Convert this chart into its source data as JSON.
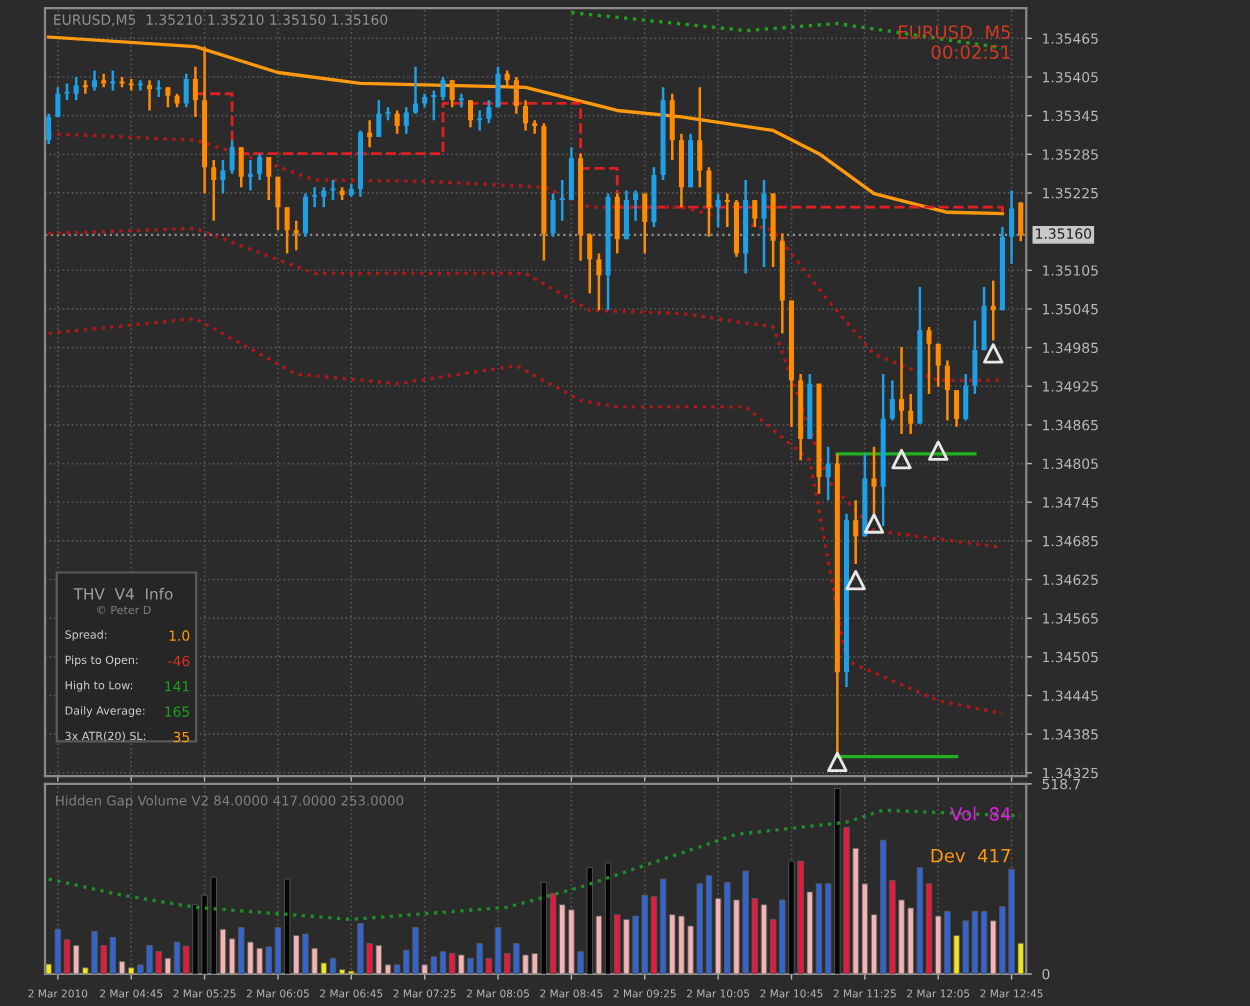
{
  "chart_data": [
    {
      "type": "candlestick",
      "title": "EURUSD,M5  1.35210 1.35210 1.35150 1.35160",
      "x": [
        "2010-03-02T04:00",
        "2010-03-02T04:05",
        "2010-03-02T04:10",
        "2010-03-02T04:15",
        "2010-03-02T04:20",
        "2010-03-02T04:25",
        "2010-03-02T04:30",
        "2010-03-02T04:35",
        "2010-03-02T04:40",
        "2010-03-02T04:45",
        "2010-03-02T04:50",
        "2010-03-02T04:55",
        "2010-03-02T05:00",
        "2010-03-02T05:05",
        "2010-03-02T05:10",
        "2010-03-02T05:15",
        "2010-03-02T05:20",
        "2010-03-02T05:25",
        "2010-03-02T05:30",
        "2010-03-02T05:35",
        "2010-03-02T05:40",
        "2010-03-02T05:45",
        "2010-03-02T05:50",
        "2010-03-02T05:55",
        "2010-03-02T06:00",
        "2010-03-02T06:05",
        "2010-03-02T06:10",
        "2010-03-02T06:15",
        "2010-03-02T06:20",
        "2010-03-02T06:25",
        "2010-03-02T06:30",
        "2010-03-02T06:35",
        "2010-03-02T06:40",
        "2010-03-02T06:45",
        "2010-03-02T06:50",
        "2010-03-02T06:55",
        "2010-03-02T07:00",
        "2010-03-02T07:05",
        "2010-03-02T07:10",
        "2010-03-02T07:15",
        "2010-03-02T07:20",
        "2010-03-02T07:25",
        "2010-03-02T07:30",
        "2010-03-02T07:35",
        "2010-03-02T07:40",
        "2010-03-02T07:45",
        "2010-03-02T07:50",
        "2010-03-02T07:55",
        "2010-03-02T08:00",
        "2010-03-02T08:05",
        "2010-03-02T08:10",
        "2010-03-02T08:15",
        "2010-03-02T08:20",
        "2010-03-02T08:25",
        "2010-03-02T08:30",
        "2010-03-02T08:35",
        "2010-03-02T08:40",
        "2010-03-02T08:45",
        "2010-03-02T08:50",
        "2010-03-02T08:55",
        "2010-03-02T09:00",
        "2010-03-02T09:05",
        "2010-03-02T09:10",
        "2010-03-02T09:15",
        "2010-03-02T09:20",
        "2010-03-02T09:25",
        "2010-03-02T09:30",
        "2010-03-02T09:35",
        "2010-03-02T09:40",
        "2010-03-02T09:45",
        "2010-03-02T09:50",
        "2010-03-02T09:55",
        "2010-03-02T10:00",
        "2010-03-02T10:05",
        "2010-03-02T10:10",
        "2010-03-02T10:15",
        "2010-03-02T10:20",
        "2010-03-02T10:25",
        "2010-03-02T10:30",
        "2010-03-02T10:35",
        "2010-03-02T10:40",
        "2010-03-02T10:45",
        "2010-03-02T10:50",
        "2010-03-02T10:55",
        "2010-03-02T11:00",
        "2010-03-02T11:05",
        "2010-03-02T11:10",
        "2010-03-02T11:15",
        "2010-03-02T11:20",
        "2010-03-02T11:25",
        "2010-03-02T11:30",
        "2010-03-02T11:35",
        "2010-03-02T11:40",
        "2010-03-02T11:45",
        "2010-03-02T11:50",
        "2010-03-02T11:55",
        "2010-03-02T12:00",
        "2010-03-02T12:05",
        "2010-03-02T12:10",
        "2010-03-02T12:15",
        "2010-03-02T12:20",
        "2010-03-02T12:25",
        "2010-03-02T12:30",
        "2010-03-02T12:35",
        "2010-03-02T12:40",
        "2010-03-02T12:45",
        "2010-03-02T12:50"
      ],
      "ohlc": [
        [
          1.35307,
          1.35348,
          1.35301,
          1.35343
        ],
        [
          1.35343,
          1.35389,
          1.35343,
          1.35379
        ],
        [
          1.35379,
          1.35395,
          1.35369,
          1.35379
        ],
        [
          1.35379,
          1.35405,
          1.35369,
          1.35392
        ],
        [
          1.35392,
          1.354,
          1.35379,
          1.35389
        ],
        [
          1.35389,
          1.35415,
          1.35384,
          1.354
        ],
        [
          1.354,
          1.3541,
          1.35389,
          1.35395
        ],
        [
          1.35395,
          1.35415,
          1.35384,
          1.35398
        ],
        [
          1.35398,
          1.35405,
          1.35389,
          1.35395
        ],
        [
          1.35395,
          1.35402,
          1.35384,
          1.35392
        ],
        [
          1.35392,
          1.354,
          1.35384,
          1.35392
        ],
        [
          1.35392,
          1.354,
          1.35353,
          1.35386
        ],
        [
          1.35386,
          1.354,
          1.35374,
          1.35389
        ],
        [
          1.35389,
          1.35389,
          1.35358,
          1.35376
        ],
        [
          1.35376,
          1.35379,
          1.35358,
          1.35364
        ],
        [
          1.35364,
          1.3541,
          1.35358,
          1.35402
        ],
        [
          1.35402,
          1.35421,
          1.35343,
          1.35369
        ],
        [
          1.35369,
          1.35452,
          1.35224,
          1.35265
        ],
        [
          1.35265,
          1.35276,
          1.35182,
          1.35245
        ],
        [
          1.35245,
          1.35276,
          1.35224,
          1.3526
        ],
        [
          1.3526,
          1.35307,
          1.35255,
          1.35296
        ],
        [
          1.35296,
          1.35296,
          1.35234,
          1.3525
        ],
        [
          1.3525,
          1.35276,
          1.35229,
          1.35255
        ],
        [
          1.35255,
          1.35286,
          1.35245,
          1.35281
        ],
        [
          1.35281,
          1.35281,
          1.35214,
          1.3525
        ],
        [
          1.3525,
          1.3525,
          1.35167,
          1.35203
        ],
        [
          1.35203,
          1.35203,
          1.35131,
          1.35167
        ],
        [
          1.35167,
          1.35182,
          1.35136,
          1.35162
        ],
        [
          1.35162,
          1.35224,
          1.35157,
          1.35219
        ],
        [
          1.35219,
          1.35234,
          1.35203,
          1.35219
        ],
        [
          1.35219,
          1.35234,
          1.35203,
          1.35229
        ],
        [
          1.35229,
          1.35245,
          1.35214,
          1.35229
        ],
        [
          1.35229,
          1.35234,
          1.35214,
          1.35222
        ],
        [
          1.35222,
          1.35239,
          1.35219,
          1.35231
        ],
        [
          1.35231,
          1.35322,
          1.35219,
          1.35319
        ],
        [
          1.35319,
          1.35338,
          1.35296,
          1.35312
        ],
        [
          1.35312,
          1.35369,
          1.35312,
          1.35348
        ],
        [
          1.35348,
          1.35358,
          1.35338,
          1.35348
        ],
        [
          1.35348,
          1.35353,
          1.35317,
          1.35329
        ],
        [
          1.35329,
          1.35358,
          1.35317,
          1.3535
        ],
        [
          1.3535,
          1.35421,
          1.35348,
          1.35364
        ],
        [
          1.35364,
          1.35379,
          1.35358,
          1.35374
        ],
        [
          1.35374,
          1.35384,
          1.35338,
          1.35374
        ],
        [
          1.35374,
          1.35405,
          1.35369,
          1.354
        ],
        [
          1.354,
          1.354,
          1.35358,
          1.35369
        ],
        [
          1.35369,
          1.35379,
          1.35358,
          1.35369
        ],
        [
          1.35369,
          1.35369,
          1.35327,
          1.35338
        ],
        [
          1.35338,
          1.35353,
          1.35322,
          1.3534
        ],
        [
          1.3534,
          1.35369,
          1.35333,
          1.35358
        ],
        [
          1.35358,
          1.35421,
          1.35358,
          1.3541
        ],
        [
          1.3541,
          1.35415,
          1.35389,
          1.354
        ],
        [
          1.354,
          1.35405,
          1.35348,
          1.3536
        ],
        [
          1.3536,
          1.35369,
          1.35322,
          1.35333
        ],
        [
          1.35333,
          1.35338,
          1.35317,
          1.35329
        ],
        [
          1.35329,
          1.35333,
          1.3512,
          1.35162
        ],
        [
          1.35162,
          1.35224,
          1.35157,
          1.35214
        ],
        [
          1.35214,
          1.35245,
          1.35182,
          1.35214
        ],
        [
          1.35214,
          1.35296,
          1.35214,
          1.35279
        ],
        [
          1.35279,
          1.35286,
          1.3512,
          1.3516
        ],
        [
          1.3516,
          1.35162,
          1.35069,
          1.35122
        ],
        [
          1.35122,
          1.35131,
          1.35043,
          1.35097
        ],
        [
          1.35097,
          1.35224,
          1.35043,
          1.35219
        ],
        [
          1.35219,
          1.35224,
          1.35131,
          1.35153
        ],
        [
          1.35153,
          1.35229,
          1.35153,
          1.35214
        ],
        [
          1.35214,
          1.35229,
          1.35182,
          1.35224
        ],
        [
          1.35224,
          1.35224,
          1.35131,
          1.3518
        ],
        [
          1.3518,
          1.35265,
          1.35172,
          1.35253
        ],
        [
          1.35253,
          1.35389,
          1.35245,
          1.35369
        ],
        [
          1.35369,
          1.35379,
          1.35276,
          1.35307
        ],
        [
          1.35307,
          1.35317,
          1.35203,
          1.35234
        ],
        [
          1.35234,
          1.35317,
          1.35234,
          1.35307
        ],
        [
          1.35307,
          1.35389,
          1.35234,
          1.3526
        ],
        [
          1.3526,
          1.35265,
          1.35157,
          1.35203
        ],
        [
          1.35203,
          1.35224,
          1.35172,
          1.35214
        ],
        [
          1.35214,
          1.35224,
          1.35172,
          1.35211
        ],
        [
          1.35211,
          1.35214,
          1.35126,
          1.35131
        ],
        [
          1.35131,
          1.35245,
          1.351,
          1.35214
        ],
        [
          1.35214,
          1.35214,
          1.35172,
          1.35185
        ],
        [
          1.35185,
          1.35245,
          1.3511,
          1.35224
        ],
        [
          1.35224,
          1.35224,
          1.3511,
          1.35151
        ],
        [
          1.35151,
          1.35162,
          1.35007,
          1.35058
        ],
        [
          1.35058,
          1.35058,
          1.34862,
          1.34934
        ],
        [
          1.34934,
          1.34944,
          1.3481,
          1.34843
        ],
        [
          1.34843,
          1.34944,
          1.34843,
          1.34929
        ],
        [
          1.34929,
          1.34929,
          1.34758,
          1.34784
        ],
        [
          1.34784,
          1.34831,
          1.34748,
          1.34805
        ],
        [
          1.34805,
          1.3482,
          1.34349,
          1.34481
        ],
        [
          1.34481,
          1.34727,
          1.34458,
          1.34717
        ],
        [
          1.34717,
          1.34748,
          1.34649,
          1.34692
        ],
        [
          1.34692,
          1.3482,
          1.34692,
          1.34782
        ],
        [
          1.34782,
          1.34831,
          1.34727,
          1.34769
        ],
        [
          1.34769,
          1.34944,
          1.34708,
          1.34875
        ],
        [
          1.34875,
          1.34934,
          1.34872,
          1.34905
        ],
        [
          1.34905,
          1.34986,
          1.34851,
          1.34887
        ],
        [
          1.34887,
          1.34913,
          1.34851,
          1.34867
        ],
        [
          1.34867,
          1.35079,
          1.34867,
          1.35012
        ],
        [
          1.35012,
          1.35017,
          1.34913,
          1.34991
        ],
        [
          1.34991,
          1.34991,
          1.34924,
          1.34957
        ],
        [
          1.34957,
          1.34965,
          1.34872,
          1.34919
        ],
        [
          1.34919,
          1.34919,
          1.34862,
          1.34874
        ],
        [
          1.34874,
          1.34944,
          1.34872,
          1.34926
        ],
        [
          1.34926,
          1.35027,
          1.34913,
          1.34981
        ],
        [
          1.34981,
          1.35079,
          1.34981,
          1.3505
        ],
        [
          1.3505,
          1.35089,
          1.34996,
          1.35043
        ],
        [
          1.35043,
          1.35172,
          1.35043,
          1.35157
        ],
        [
          1.35157,
          1.35229,
          1.35115,
          1.35201
        ],
        [
          1.3521,
          1.3521,
          1.3515,
          1.3516
        ]
      ],
      "series": [
        {
          "type": "line",
          "color": "#ff9a10",
          "line_style": "solid",
          "x": [
            "2010-03-02T04:00",
            "2010-03-02T05:20",
            "2010-03-02T06:05",
            "2010-03-02T06:50",
            "2010-03-02T08:20",
            "2010-03-02T09:10",
            "2010-03-02T09:45",
            "2010-03-02T10:35",
            "2010-03-02T11:00",
            "2010-03-02T11:30",
            "2010-03-02T12:10",
            "2010-03-02T12:40"
          ],
          "values": [
            1.35467,
            1.35452,
            1.35412,
            1.35395,
            1.35389,
            1.35353,
            1.35343,
            1.35322,
            1.35286,
            1.35224,
            1.35195,
            1.35193
          ]
        },
        {
          "type": "step",
          "color": "#e02020",
          "line_style": "dashed",
          "x": [
            "2010-03-02T05:20",
            "2010-03-02T05:40",
            "2010-03-02T07:35",
            "2010-03-02T08:50",
            "2010-03-02T09:10",
            "2010-03-02T12:40"
          ],
          "values": [
            1.35379,
            1.35286,
            1.35364,
            1.35263,
            1.35203,
            1.35195
          ]
        },
        {
          "type": "line",
          "color": "#b01818",
          "line_style": "dotted",
          "x": [
            "2010-03-02T04:00",
            "2010-03-02T05:20",
            "2010-03-02T05:55",
            "2010-03-02T06:25",
            "2010-03-02T07:25",
            "2010-03-02T08:30",
            "2010-03-02T08:55",
            "2010-03-02T09:45",
            "2010-03-02T10:35",
            "2010-03-02T11:05",
            "2010-03-02T11:30",
            "2010-03-02T12:05",
            "2010-03-02T12:40"
          ],
          "values": [
            1.35317,
            1.35307,
            1.35276,
            1.35245,
            1.35243,
            1.35234,
            1.35203,
            1.35203,
            1.35167,
            1.35058,
            1.34975,
            1.34934,
            1.34934
          ]
        },
        {
          "type": "line",
          "color": "#b01818",
          "line_style": "dotted",
          "x": [
            "2010-03-02T04:00",
            "2010-03-02T05:20",
            "2010-03-02T06:25",
            "2010-03-02T08:20",
            "2010-03-02T08:55",
            "2010-03-02T09:45",
            "2010-03-02T10:35",
            "2010-03-02T11:05",
            "2010-03-02T11:30",
            "2010-03-02T12:40"
          ],
          "values": [
            1.35162,
            1.3517,
            1.351,
            1.351,
            1.35043,
            1.35038,
            1.35017,
            1.34779,
            1.34701,
            1.34675
          ]
        },
        {
          "type": "line",
          "color": "#b01818",
          "line_style": "dotted",
          "x": [
            "2010-03-02T04:00",
            "2010-03-02T05:20",
            "2010-03-02T06:15",
            "2010-03-02T07:10",
            "2010-03-02T08:15",
            "2010-03-02T08:50",
            "2010-03-02T09:10",
            "2010-03-02T10:20",
            "2010-03-02T10:55",
            "2010-03-02T11:15",
            "2010-03-02T12:05",
            "2010-03-02T12:40"
          ],
          "values": [
            1.35007,
            1.3503,
            1.34944,
            1.34929,
            1.34957,
            1.34903,
            1.34893,
            1.34893,
            1.3481,
            1.34499,
            1.34437,
            1.34417
          ]
        },
        {
          "type": "line",
          "color": "#20a020",
          "line_style": "dotted",
          "x": [
            "2010-03-02T08:45",
            "2010-03-02T10:20",
            "2010-03-02T11:10",
            "2010-03-02T12:40"
          ],
          "values": [
            1.35505,
            1.35477,
            1.35488,
            1.3545
          ]
        },
        {
          "type": "line",
          "color": "#20b020",
          "line_style": "solid",
          "x": [
            "2010-03-02T11:10",
            "2010-03-02T12:25"
          ],
          "values": [
            1.3482,
            1.3482
          ]
        },
        {
          "type": "line",
          "color": "#20b020",
          "line_style": "solid",
          "x": [
            "2010-03-02T11:10",
            "2010-03-02T12:15"
          ],
          "values": [
            1.3435,
            1.3435
          ]
        },
        {
          "type": "scatter",
          "color": "#e8e8e8",
          "marker": "triangle",
          "x": [
            "2010-03-02T11:10",
            "2010-03-02T11:20",
            "2010-03-02T11:30",
            "2010-03-02T11:45",
            "2010-03-02T12:05",
            "2010-03-02T12:35"
          ],
          "values": [
            1.34342,
            1.34624,
            1.34712,
            1.34812,
            1.34825,
            1.34976
          ]
        }
      ],
      "ref_lines": [
        {
          "axis": "y",
          "value": 1.3516,
          "label": "1.35160",
          "color": "#909090",
          "line_style": "dotted"
        }
      ],
      "xlim": [
        "2010-03-02T03:58",
        "2010-03-02T12:53"
      ],
      "xticks": [
        {
          "value": "2010-03-02T04:05",
          "label": null
        },
        {
          "value": "2010-03-02T04:45",
          "label": null
        },
        {
          "value": "2010-03-02T05:25",
          "label": null
        },
        {
          "value": "2010-03-02T06:05",
          "label": null
        },
        {
          "value": "2010-03-02T06:45",
          "label": null
        },
        {
          "value": "2010-03-02T07:25",
          "label": null
        },
        {
          "value": "2010-03-02T08:05",
          "label": null
        },
        {
          "value": "2010-03-02T08:45",
          "label": null
        },
        {
          "value": "2010-03-02T09:25",
          "label": null
        },
        {
          "value": "2010-03-02T10:05",
          "label": null
        },
        {
          "value": "2010-03-02T10:45",
          "label": null
        },
        {
          "value": "2010-03-02T11:25",
          "label": null
        },
        {
          "value": "2010-03-02T12:05",
          "label": null
        },
        {
          "value": "2010-03-02T12:45",
          "label": null
        }
      ],
      "ylim": [
        1.3432,
        1.35512
      ],
      "yticks": [
        {
          "value": 1.35465,
          "label": "1.35465"
        },
        {
          "value": 1.35405,
          "label": "1.35405"
        },
        {
          "value": 1.35345,
          "label": "1.35345"
        },
        {
          "value": 1.35285,
          "label": "1.35285"
        },
        {
          "value": 1.35225,
          "label": "1.35225"
        },
        {
          "value": 1.35105,
          "label": "1.35105"
        },
        {
          "value": 1.35045,
          "label": "1.35045"
        },
        {
          "value": 1.34985,
          "label": "1.34985"
        },
        {
          "value": 1.34925,
          "label": "1.34925"
        },
        {
          "value": 1.34865,
          "label": "1.34865"
        },
        {
          "value": 1.34805,
          "label": "1.34805"
        },
        {
          "value": 1.34745,
          "label": "1.34745"
        },
        {
          "value": 1.34685,
          "label": "1.34685"
        },
        {
          "value": 1.34625,
          "label": "1.34625"
        },
        {
          "value": 1.34565,
          "label": "1.34565"
        },
        {
          "value": 1.34505,
          "label": "1.34505"
        },
        {
          "value": 1.34445,
          "label": "1.34445"
        },
        {
          "value": 1.34385,
          "label": "1.34385"
        },
        {
          "value": 1.34325,
          "label": "1.34325"
        }
      ],
      "grid": true,
      "tick_labels": "y",
      "annotations": [
        "EURUSD  M5",
        "00:02:51",
        "THV  V4  Info",
        "© Peter D",
        "Spread:",
        "1.0",
        "Pips to Open:",
        "-46",
        "High to Low:",
        "141",
        "Daily Average:",
        "165",
        "3x ATR(20) SL:",
        "35"
      ]
    },
    {
      "type": "bar",
      "x": [
        "2010-03-02T04:00",
        "2010-03-02T04:05",
        "2010-03-02T04:10",
        "2010-03-02T04:15",
        "2010-03-02T04:20",
        "2010-03-02T04:25",
        "2010-03-02T04:30",
        "2010-03-02T04:35",
        "2010-03-02T04:40",
        "2010-03-02T04:45",
        "2010-03-02T04:50",
        "2010-03-02T04:55",
        "2010-03-02T05:00",
        "2010-03-02T05:05",
        "2010-03-02T05:10",
        "2010-03-02T05:15",
        "2010-03-02T05:20",
        "2010-03-02T05:25",
        "2010-03-02T05:30",
        "2010-03-02T05:35",
        "2010-03-02T05:40",
        "2010-03-02T05:45",
        "2010-03-02T05:50",
        "2010-03-02T05:55",
        "2010-03-02T06:00",
        "2010-03-02T06:05",
        "2010-03-02T06:10",
        "2010-03-02T06:15",
        "2010-03-02T06:20",
        "2010-03-02T06:25",
        "2010-03-02T06:30",
        "2010-03-02T06:35",
        "2010-03-02T06:40",
        "2010-03-02T06:45",
        "2010-03-02T06:50",
        "2010-03-02T06:55",
        "2010-03-02T07:00",
        "2010-03-02T07:05",
        "2010-03-02T07:10",
        "2010-03-02T07:15",
        "2010-03-02T07:20",
        "2010-03-02T07:25",
        "2010-03-02T07:30",
        "2010-03-02T07:35",
        "2010-03-02T07:40",
        "2010-03-02T07:45",
        "2010-03-02T07:50",
        "2010-03-02T07:55",
        "2010-03-02T08:00",
        "2010-03-02T08:05",
        "2010-03-02T08:10",
        "2010-03-02T08:15",
        "2010-03-02T08:20",
        "2010-03-02T08:25",
        "2010-03-02T08:30",
        "2010-03-02T08:35",
        "2010-03-02T08:40",
        "2010-03-02T08:45",
        "2010-03-02T08:50",
        "2010-03-02T08:55",
        "2010-03-02T09:00",
        "2010-03-02T09:05",
        "2010-03-02T09:10",
        "2010-03-02T09:15",
        "2010-03-02T09:20",
        "2010-03-02T09:25",
        "2010-03-02T09:30",
        "2010-03-02T09:35",
        "2010-03-02T09:40",
        "2010-03-02T09:45",
        "2010-03-02T09:50",
        "2010-03-02T09:55",
        "2010-03-02T10:00",
        "2010-03-02T10:05",
        "2010-03-02T10:10",
        "2010-03-02T10:15",
        "2010-03-02T10:20",
        "2010-03-02T10:25",
        "2010-03-02T10:30",
        "2010-03-02T10:35",
        "2010-03-02T10:40",
        "2010-03-02T10:45",
        "2010-03-02T10:50",
        "2010-03-02T10:55",
        "2010-03-02T11:00",
        "2010-03-02T11:05",
        "2010-03-02T11:10",
        "2010-03-02T11:15",
        "2010-03-02T11:20",
        "2010-03-02T11:25",
        "2010-03-02T11:30",
        "2010-03-02T11:35",
        "2010-03-02T11:40",
        "2010-03-02T11:45",
        "2010-03-02T11:50",
        "2010-03-02T11:55",
        "2010-03-02T12:00",
        "2010-03-02T12:05",
        "2010-03-02T12:10",
        "2010-03-02T12:15",
        "2010-03-02T12:20",
        "2010-03-02T12:25",
        "2010-03-02T12:30",
        "2010-03-02T12:35",
        "2010-03-02T12:40",
        "2010-03-02T12:45",
        "2010-03-02T12:50"
      ],
      "values": [
        27,
        122,
        94,
        78,
        17,
        116,
        78,
        100,
        34,
        17,
        25,
        78,
        61,
        43,
        87,
        76,
        189,
        215,
        264,
        122,
        96,
        127,
        87,
        70,
        74,
        127,
        259,
        105,
        109,
        70,
        30,
        43,
        12,
        8,
        138,
        83,
        78,
        25,
        25,
        65,
        127,
        25,
        47,
        61,
        56,
        52,
        43,
        83,
        43,
        127,
        56,
        83,
        52,
        56,
        250,
        220,
        189,
        175,
        61,
        290,
        158,
        303,
        162,
        149,
        158,
        215,
        211,
        259,
        162,
        158,
        131,
        246,
        268,
        206,
        250,
        202,
        281,
        206,
        189,
        149,
        202,
        308,
        308,
        224,
        246,
        246,
        506,
        400,
        343,
        246,
        162,
        365,
        255,
        202,
        180,
        290,
        246,
        158,
        171,
        105,
        145,
        171,
        171,
        145,
        184,
        286,
        84
      ],
      "colors": [
        "#f0e61e",
        "#3264d2",
        "#e8193c",
        "#f5b4b4",
        "#f0e61e",
        "#3264d2",
        "#e8193c",
        "#3264d2",
        "#f5b4b4",
        "#f0e61e",
        "#3264d2",
        "#3264d2",
        "#e8193c",
        "#f5b4b4",
        "#3264d2",
        "#e8193c",
        "#050505",
        "#050505",
        "#050505",
        "#f5b4b4",
        "#f5b4b4",
        "#3264d2",
        "#f5b4b4",
        "#f5b4b4",
        "#3264d2",
        "#3264d2",
        "#050505",
        "#f5b4b4",
        "#3264d2",
        "#f5b4b4",
        "#f0e61e",
        "#3264d2",
        "#f0e61e",
        "#f0e61e",
        "#3264d2",
        "#e8193c",
        "#f5b4b4",
        "#f5b4b4",
        "#3264d2",
        "#3264d2",
        "#3264d2",
        "#f5b4b4",
        "#3264d2",
        "#3264d2",
        "#e8193c",
        "#f5b4b4",
        "#3264d2",
        "#3264d2",
        "#e8193c",
        "#3264d2",
        "#e8193c",
        "#3264d2",
        "#f5b4b4",
        "#f5b4b4",
        "#050505",
        "#e8193c",
        "#f5b4b4",
        "#f5b4b4",
        "#3264d2",
        "#050505",
        "#f5b4b4",
        "#050505",
        "#e8193c",
        "#f5b4b4",
        "#3264d2",
        "#3264d2",
        "#e8193c",
        "#3264d2",
        "#f5b4b4",
        "#f5b4b4",
        "#f5b4b4",
        "#3264d2",
        "#3264d2",
        "#f5b4b4",
        "#3264d2",
        "#f5b4b4",
        "#3264d2",
        "#e8193c",
        "#f5b4b4",
        "#e8193c",
        "#3264d2",
        "#050505",
        "#e8193c",
        "#f5b4b4",
        "#3264d2",
        "#3264d2",
        "#050505",
        "#e8193c",
        "#f5b4b4",
        "#f5b4b4",
        "#f5b4b4",
        "#3264d2",
        "#e8193c",
        "#f5b4b4",
        "#f5b4b4",
        "#3264d2",
        "#e8193c",
        "#f5b4b4",
        "#3264d2",
        "#f0e61e",
        "#3264d2",
        "#3264d2",
        "#3264d2",
        "#f5b4b4",
        "#3264d2",
        "#3264d2",
        "#f0e61e"
      ],
      "series": [
        {
          "type": "line",
          "color": "#1e8c2a",
          "line_style": "dotted",
          "x": [
            "2010-03-02T04:00",
            "2010-03-02T04:40",
            "2010-03-02T05:20",
            "2010-03-02T06:45",
            "2010-03-02T08:10",
            "2010-03-02T08:50",
            "2010-03-02T10:15",
            "2010-03-02T11:15",
            "2010-03-02T11:35",
            "2010-03-02T12:50"
          ],
          "values": [
            259,
            215,
            182,
            149,
            182,
            237,
            381,
            414,
            447,
            431
          ]
        }
      ],
      "xlim": [
        "2010-03-02T03:58",
        "2010-03-02T12:53"
      ],
      "xticks": [
        {
          "value": "2010-03-02T04:05",
          "label": "2 Mar 2010"
        },
        {
          "value": "2010-03-02T04:45",
          "label": "2 Mar 04:45"
        },
        {
          "value": "2010-03-02T05:25",
          "label": "2 Mar 05:25"
        },
        {
          "value": "2010-03-02T06:05",
          "label": "2 Mar 06:05"
        },
        {
          "value": "2010-03-02T06:45",
          "label": "2 Mar 06:45"
        },
        {
          "value": "2010-03-02T07:25",
          "label": "2 Mar 07:25"
        },
        {
          "value": "2010-03-02T08:05",
          "label": "2 Mar 08:05"
        },
        {
          "value": "2010-03-02T08:45",
          "label": "2 Mar 08:45"
        },
        {
          "value": "2010-03-02T09:25",
          "label": "2 Mar 09:25"
        },
        {
          "value": "2010-03-02T10:05",
          "label": "2 Mar 10:05"
        },
        {
          "value": "2010-03-02T10:45",
          "label": "2 Mar 10:45"
        },
        {
          "value": "2010-03-02T11:25",
          "label": "2 Mar 11:25"
        },
        {
          "value": "2010-03-02T12:05",
          "label": "2 Mar 12:05"
        },
        {
          "value": "2010-03-02T12:45",
          "label": "2 Mar 12:45"
        }
      ],
      "ylim": [
        0,
        518.7
      ],
      "yticks": [
        0,
        518.7
      ],
      "grid": true,
      "annotations": [
        "Hidden Gap Volume V2 84.0000 417.0000 253.0000",
        "Vol  84",
        "Dev  417"
      ]
    }
  ]
}
